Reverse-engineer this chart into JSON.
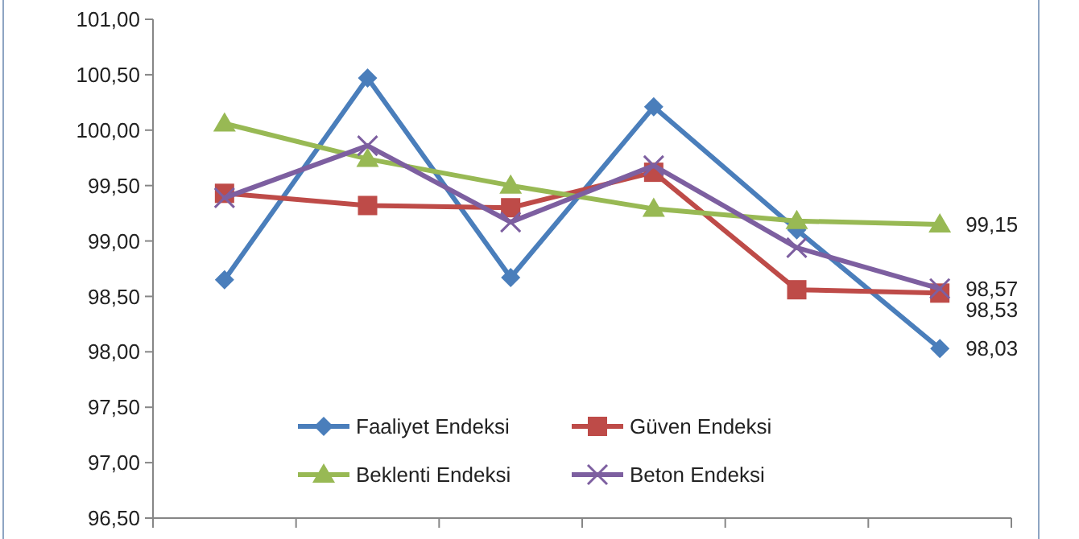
{
  "chart_data": {
    "type": "line",
    "categories": [
      null,
      null,
      null,
      null,
      null,
      null
    ],
    "series": [
      {
        "name": "Faaliyet Endeksi",
        "color": "#4a7ebb",
        "marker": "diamond",
        "values": [
          98.65,
          100.47,
          98.67,
          100.21,
          99.1,
          98.03
        ],
        "value_labels": [
          null,
          null,
          null,
          null,
          null,
          "98,03"
        ]
      },
      {
        "name": "Güven Endeksi",
        "color": "#be4b48",
        "marker": "square",
        "values": [
          99.43,
          99.32,
          99.3,
          99.62,
          98.56,
          98.53
        ],
        "value_labels": [
          null,
          null,
          null,
          null,
          null,
          "98,53"
        ]
      },
      {
        "name": "Beklenti Endeksi",
        "color": "#98b954",
        "marker": "triangle",
        "values": [
          100.06,
          99.74,
          99.5,
          99.29,
          99.18,
          99.15
        ],
        "value_labels": [
          null,
          null,
          null,
          null,
          null,
          "99,15"
        ]
      },
      {
        "name": "Beton Endeksi",
        "color": "#7d5fa0",
        "marker": "cross",
        "values": [
          99.39,
          99.86,
          99.17,
          99.68,
          98.94,
          98.57
        ],
        "value_labels": [
          null,
          null,
          null,
          null,
          null,
          "98,57"
        ]
      }
    ],
    "ylim": [
      96.5,
      101
    ],
    "yticks": [
      {
        "value": 96.5,
        "label": "96,50"
      },
      {
        "value": 97,
        "label": "97,00"
      },
      {
        "value": 97.5,
        "label": "97,50"
      },
      {
        "value": 98,
        "label": "98,00"
      },
      {
        "value": 98.5,
        "label": "98,50"
      },
      {
        "value": 99,
        "label": "99,00"
      },
      {
        "value": 99.5,
        "label": "99,50"
      },
      {
        "value": 100,
        "label": "100,00"
      },
      {
        "value": 100.5,
        "label": "100,50"
      },
      {
        "value": 101,
        "label": "101,00"
      }
    ],
    "grid": false,
    "legend": "bottom",
    "line_style": "solid"
  }
}
